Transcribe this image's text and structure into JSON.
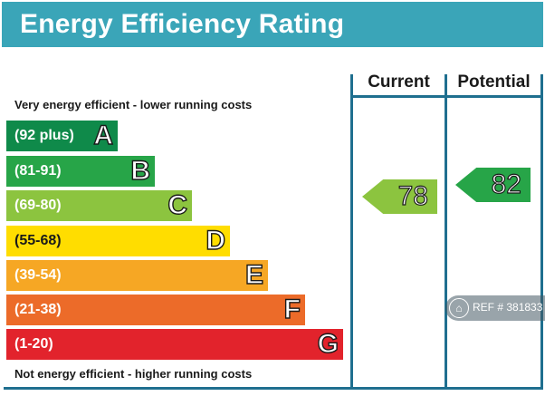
{
  "header": {
    "title": "Energy Efficiency Rating"
  },
  "columns": {
    "current": "Current",
    "potential": "Potential"
  },
  "captions": {
    "top": "Very energy efficient - lower running costs",
    "bottom": "Not energy efficient - higher running costs"
  },
  "bands": [
    {
      "range": "(92 plus)",
      "letter": "A",
      "color": "#0f8a4a"
    },
    {
      "range": "(81-91)",
      "letter": "B",
      "color": "#27a548"
    },
    {
      "range": "(69-80)",
      "letter": "C",
      "color": "#8cc43f"
    },
    {
      "range": "(55-68)",
      "letter": "D",
      "color": "#ffdd00"
    },
    {
      "range": "(39-54)",
      "letter": "E",
      "color": "#f6a724"
    },
    {
      "range": "(21-38)",
      "letter": "F",
      "color": "#ec6b29"
    },
    {
      "range": "(1-20)",
      "letter": "G",
      "color": "#e2232c"
    }
  ],
  "ratings": {
    "current": {
      "value": "78",
      "color": "#8cc43f"
    },
    "potential": {
      "value": "82",
      "color": "#27a548"
    }
  },
  "watermark": {
    "text": "REF # 381833",
    "icon": "home-icon"
  }
}
